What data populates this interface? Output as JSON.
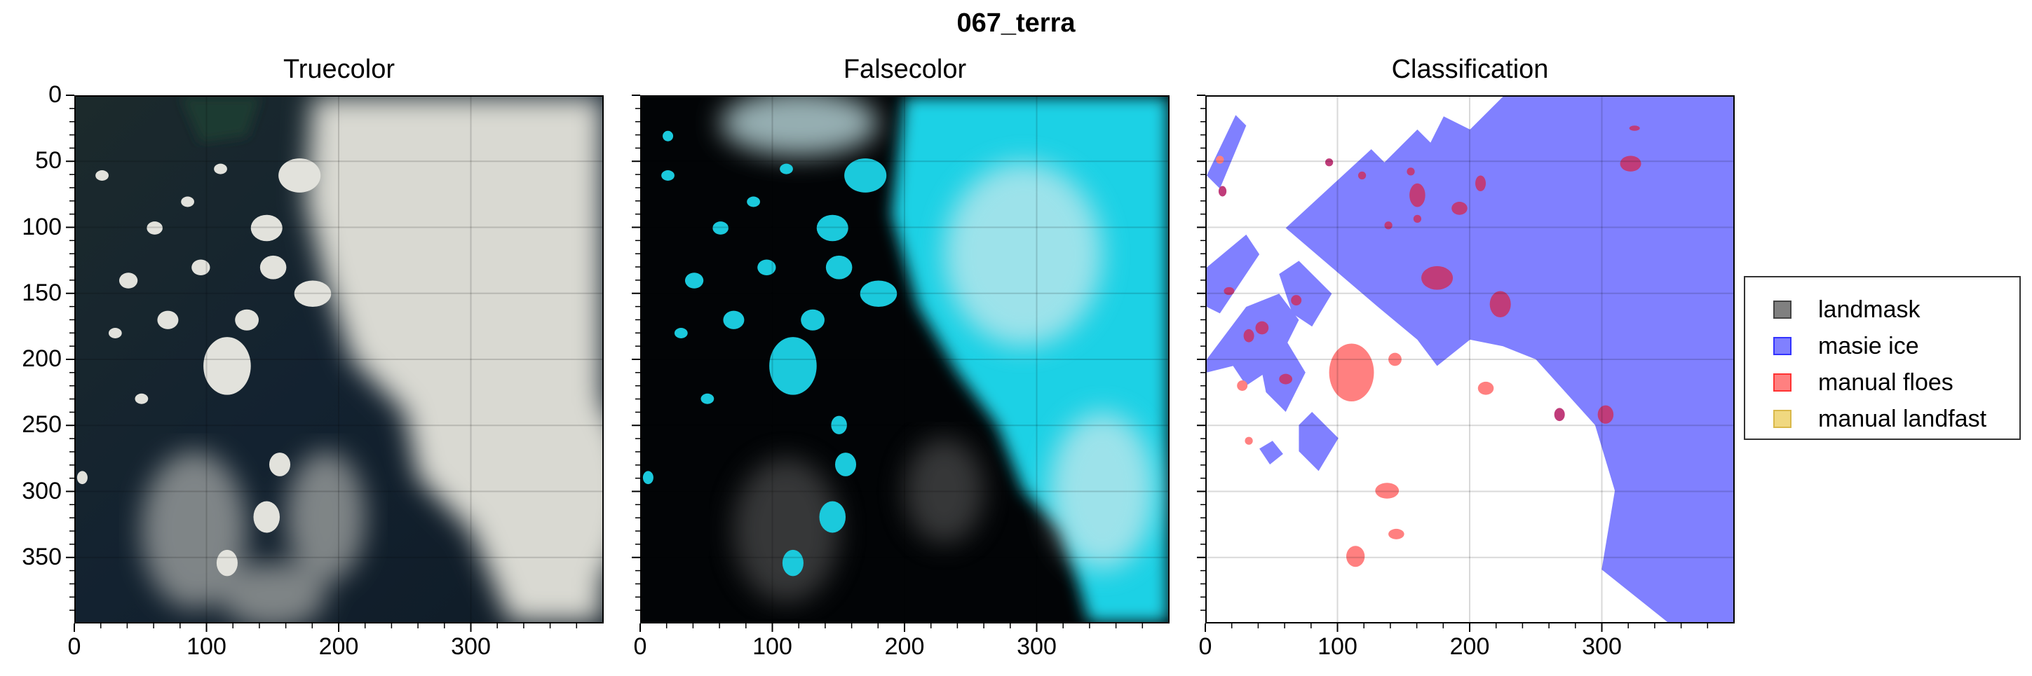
{
  "figure": {
    "suptitle": "067_terra",
    "panels": [
      {
        "id": "truecolor",
        "title": "Truecolor"
      },
      {
        "id": "falsecolor",
        "title": "Falsecolor"
      },
      {
        "id": "classification",
        "title": "Classification"
      }
    ],
    "x_axis": {
      "range": [
        0,
        400
      ],
      "ticks": [
        "0",
        "100",
        "200",
        "300"
      ]
    },
    "y_axis": {
      "range": [
        0,
        400
      ],
      "inverted": true,
      "ticks": [
        "0",
        "50",
        "100",
        "150",
        "200",
        "250",
        "300",
        "350"
      ]
    },
    "grid": true,
    "legend": {
      "placement": "right",
      "items": [
        {
          "label": "landmask",
          "fill": "#808080",
          "edge": "#444444"
        },
        {
          "label": "masie ice",
          "fill": "#8080ff",
          "edge": "#3333ff"
        },
        {
          "label": "manual floes",
          "fill": "#ff8080",
          "edge": "#ff3333"
        },
        {
          "label": "manual landfast",
          "fill": "#f0d880",
          "edge": "#d9b84a"
        }
      ]
    },
    "colors": {
      "ocean_dark": "#101a24",
      "cloud": "#d8d8d0",
      "falsecolor_ice": "#19d3e6",
      "masie_ice": "#8080ff",
      "manual_floes": "#ff8080",
      "overlap": "#c03c7a"
    }
  }
}
